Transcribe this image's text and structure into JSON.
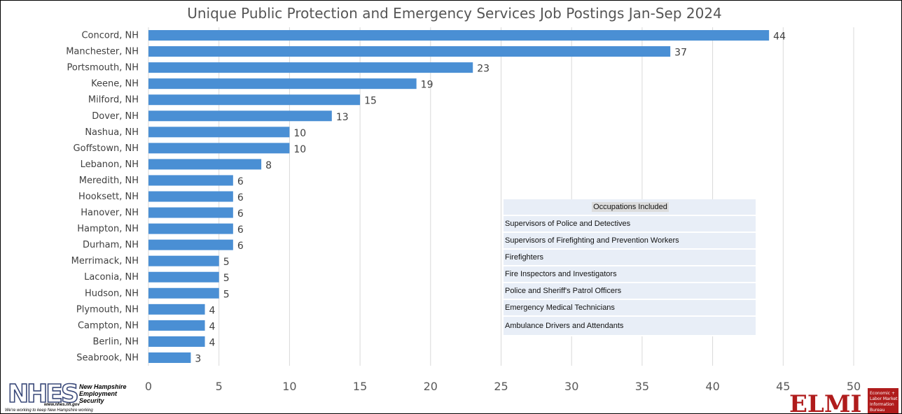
{
  "chart_data": {
    "type": "bar",
    "orientation": "horizontal",
    "title": "Unique Public Protection and Emergency Services Job Postings Jan-Sep 2024",
    "categories": [
      "Concord,  NH",
      "Manchester,  NH",
      "Portsmouth, NH",
      "Keene, NH",
      "Milford,  NH",
      "Dover,    NH",
      "Nashua, NH",
      "Goffstown,  NH",
      "Lebanon, NH",
      "Meredith,  NH",
      "Hooksett,  NH",
      "Hanover,   NH",
      "Hampton,  NH",
      "Durham, NH",
      "Merrimack,  NH",
      "Laconia,  NH",
      "Hudson, NH",
      "Plymouth, NH",
      "Campton, NH",
      "Berlin, NH",
      "Seabrook, NH"
    ],
    "values": [
      44,
      37,
      23,
      19,
      15,
      13,
      10,
      10,
      8,
      6,
      6,
      6,
      6,
      6,
      5,
      5,
      5,
      4,
      4,
      4,
      3
    ],
    "xlim": [
      0,
      50
    ],
    "xticks": [
      "0",
      "5",
      "10",
      "15",
      "20",
      "25",
      "30",
      "35",
      "40",
      "45",
      "50"
    ],
    "grid": "vertical",
    "bar_color": "#4a8fd4",
    "data_labels": true
  },
  "table": {
    "header": "Occupations Included",
    "rows": [
      "Supervisors of Police and Detectives",
      "Supervisors of Firefighting and Prevention Workers",
      "Firefighters",
      "Fire Inspectors and Investigators",
      "Police and Sheriff's Patrol Officers",
      "Emergency Medical Technicians",
      "Ambulance Drivers and Attendants"
    ]
  },
  "logos": {
    "nhes": {
      "mark": "NHES",
      "line1": "New Hampshire",
      "line2": "Employment",
      "line3": "Security",
      "url": "www.nhes.nh.gov",
      "tagline": "We're working to keep New Hampshire working"
    },
    "elmi": {
      "mark": "ELMI",
      "line1": "Economic +",
      "line2": "Labor Market",
      "line3": "Information",
      "line4": "Bureau"
    }
  },
  "colors": {
    "bar": "#4a8fd4",
    "grid": "#d9d9d9",
    "elmi_red": "#b01c1c"
  }
}
